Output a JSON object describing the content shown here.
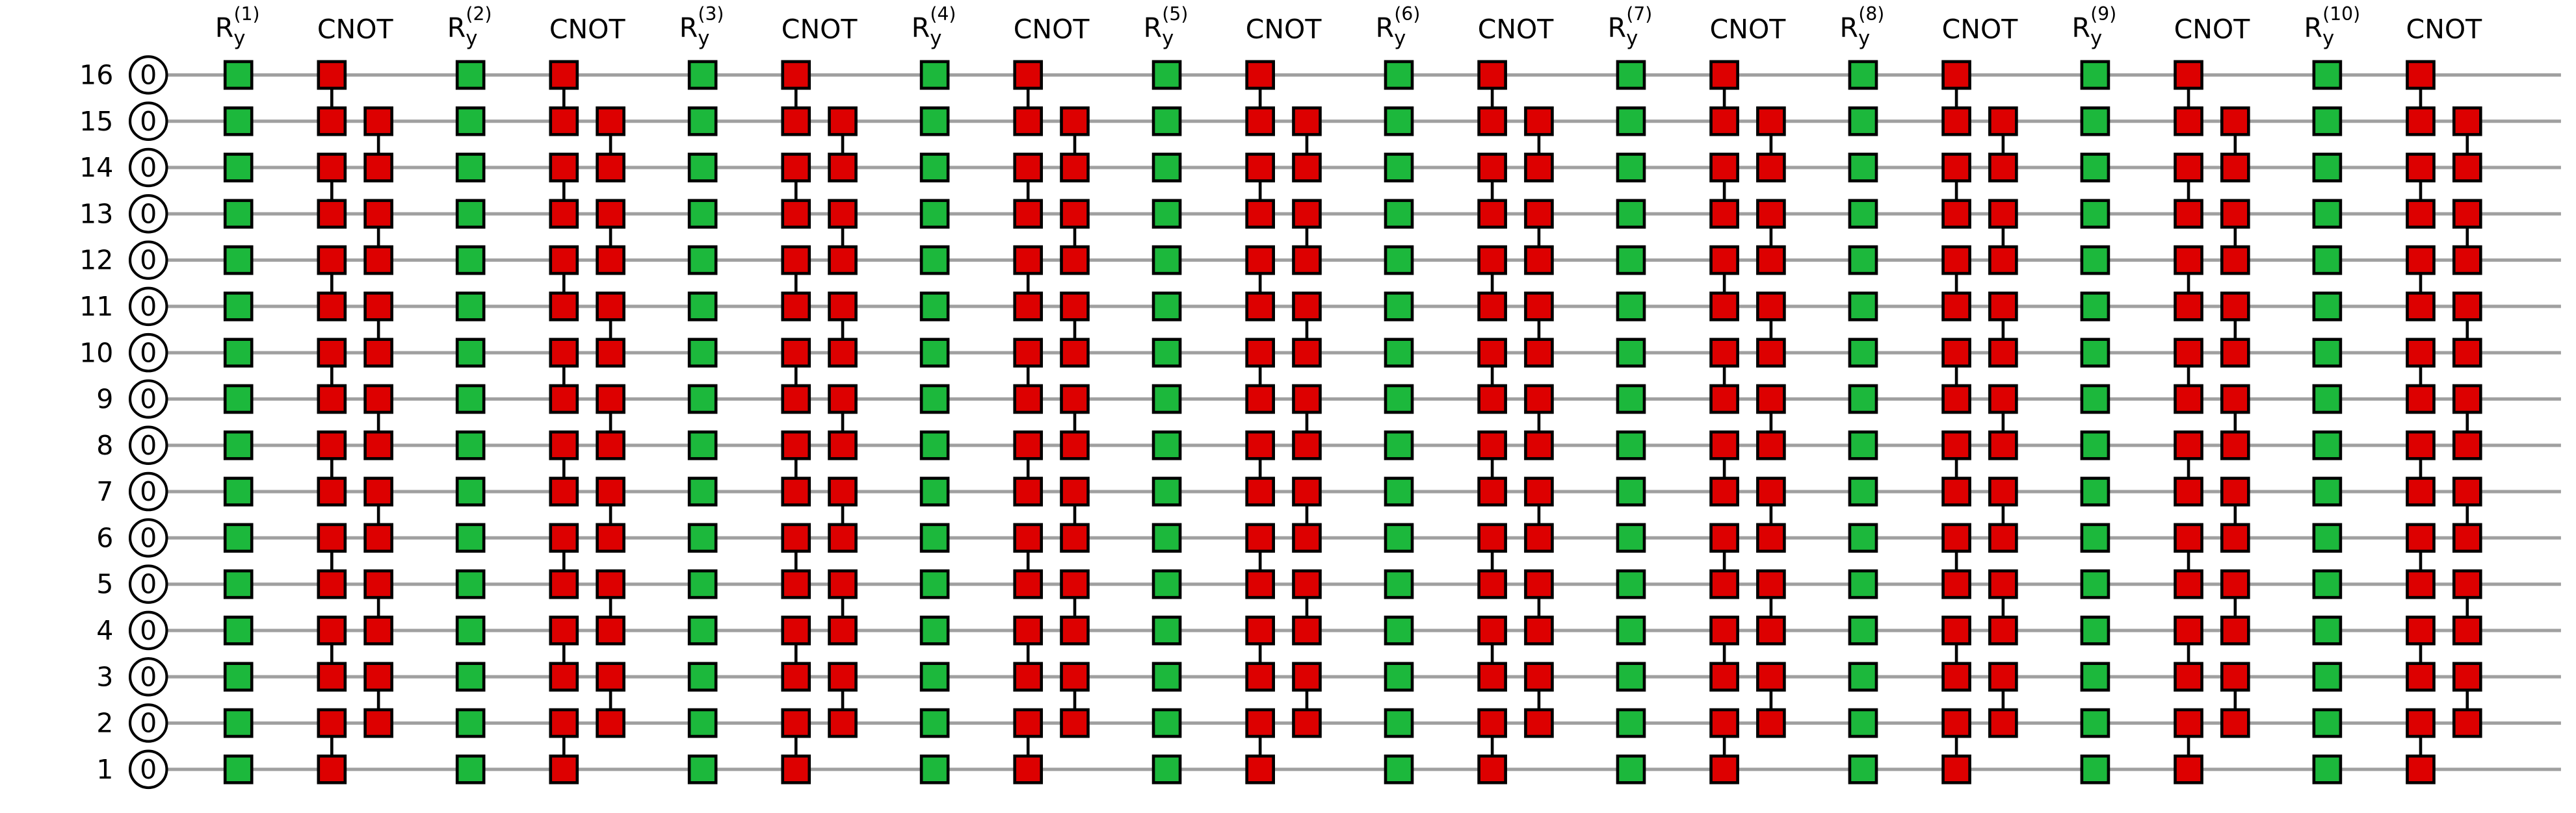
{
  "qubits": [
    {
      "label": "16",
      "state": "0"
    },
    {
      "label": "15",
      "state": "0"
    },
    {
      "label": "14",
      "state": "0"
    },
    {
      "label": "13",
      "state": "0"
    },
    {
      "label": "12",
      "state": "0"
    },
    {
      "label": "11",
      "state": "0"
    },
    {
      "label": "10",
      "state": "0"
    },
    {
      "label": "9",
      "state": "0"
    },
    {
      "label": "8",
      "state": "0"
    },
    {
      "label": "7",
      "state": "0"
    },
    {
      "label": "6",
      "state": "0"
    },
    {
      "label": "5",
      "state": "0"
    },
    {
      "label": "4",
      "state": "0"
    },
    {
      "label": "3",
      "state": "0"
    },
    {
      "label": "2",
      "state": "0"
    },
    {
      "label": "1",
      "state": "0"
    }
  ],
  "columns": [
    {
      "base": "R",
      "sub": "y",
      "sup": "(1)"
    },
    {
      "label": "CNOT"
    },
    {
      "base": "R",
      "sub": "y",
      "sup": "(2)"
    },
    {
      "label": "CNOT"
    },
    {
      "base": "R",
      "sub": "y",
      "sup": "(3)"
    },
    {
      "label": "CNOT"
    },
    {
      "base": "R",
      "sub": "y",
      "sup": "(4)"
    },
    {
      "label": "CNOT"
    },
    {
      "base": "R",
      "sub": "y",
      "sup": "(5)"
    },
    {
      "label": "CNOT"
    },
    {
      "base": "R",
      "sub": "y",
      "sup": "(6)"
    },
    {
      "label": "CNOT"
    },
    {
      "base": "R",
      "sub": "y",
      "sup": "(7)"
    },
    {
      "label": "CNOT"
    },
    {
      "base": "R",
      "sub": "y",
      "sup": "(8)"
    },
    {
      "label": "CNOT"
    },
    {
      "base": "R",
      "sub": "y",
      "sup": "(9)"
    },
    {
      "label": "CNOT"
    },
    {
      "base": "R",
      "sub": "y",
      "sup": "(10)"
    },
    {
      "label": "CNOT"
    }
  ]
}
